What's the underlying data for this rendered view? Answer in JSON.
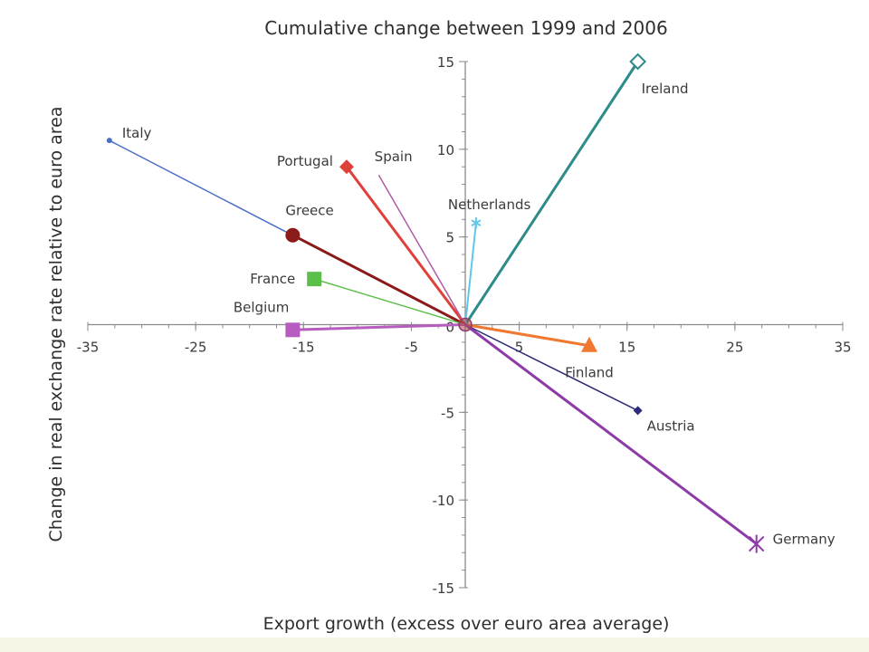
{
  "chart_data": {
    "type": "scatter",
    "title": "Cumulative change between 1999 and 2006",
    "xlabel": "Export growth (excess over euro area average)",
    "ylabel": "Change in real exchange rate relative to euro area",
    "xlim": [
      -35,
      35
    ],
    "ylim": [
      -15,
      15
    ],
    "xticks": [
      -35,
      -25,
      -15,
      -5,
      5,
      15,
      25,
      35
    ],
    "yticks": [
      -15,
      -10,
      -5,
      5,
      10,
      15
    ],
    "origin_label": "0",
    "grid": false,
    "lines_from_origin": true,
    "series": [
      {
        "name": "Ireland",
        "x": 16,
        "y": 15,
        "color": "#2e8b8b",
        "marker": "open-diamond"
      },
      {
        "name": "Italy",
        "x": -33,
        "y": 10.5,
        "color": "#4a6fc4",
        "marker": "small-dot"
      },
      {
        "name": "Portugal",
        "x": -11,
        "y": 9,
        "color": "#e0403a",
        "marker": "diamond"
      },
      {
        "name": "Spain",
        "x": -8,
        "y": 8.5,
        "color": "#b05ca3",
        "marker": "none"
      },
      {
        "name": "Netherlands",
        "x": 1,
        "y": 5.8,
        "color": "#5ec8e8",
        "marker": "asterisk"
      },
      {
        "name": "Greece",
        "x": -16,
        "y": 5.1,
        "color": "#8b1a1a",
        "marker": "circle"
      },
      {
        "name": "France",
        "x": -14,
        "y": 2.6,
        "color": "#5cbf4a",
        "marker": "square"
      },
      {
        "name": "Belgium",
        "x": -16,
        "y": -0.3,
        "color": "#b75dbf",
        "marker": "square"
      },
      {
        "name": "Finland",
        "x": 11.5,
        "y": -1.2,
        "color": "#f07830",
        "marker": "triangle"
      },
      {
        "name": "Austria",
        "x": 16,
        "y": -4.9,
        "color": "#2b2b7a",
        "marker": "small-diamond"
      },
      {
        "name": "Germany",
        "x": 27,
        "y": -12.5,
        "color": "#8e3aa8",
        "marker": "x-star"
      }
    ]
  }
}
